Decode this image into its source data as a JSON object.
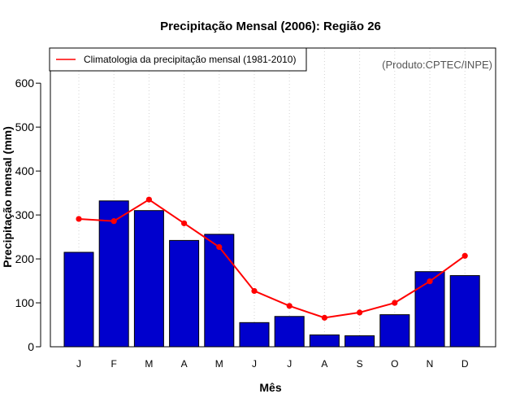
{
  "chart_data": {
    "type": "bar",
    "title": "Precipitação Mensal (2006): Região 26",
    "xlabel": "Mês",
    "ylabel": "Precipitação mensal (mm)",
    "categories": [
      "J",
      "F",
      "M",
      "A",
      "M",
      "J",
      "J",
      "A",
      "S",
      "O",
      "N",
      "D"
    ],
    "ylim": [
      0,
      680
    ],
    "yticks": [
      0,
      100,
      200,
      300,
      400,
      500,
      600
    ],
    "grid": "vertical-dotted",
    "series": [
      {
        "name": "Precipitação mensal (2006)",
        "type": "bar",
        "color": "#0000CD",
        "values": [
          215,
          332,
          310,
          242,
          256,
          55,
          69,
          27,
          25,
          73,
          171,
          162
        ]
      },
      {
        "name": "Climatologia da precipitação mensal (1981-2010)",
        "type": "line",
        "color": "#FF0000",
        "values": [
          291,
          286,
          335,
          281,
          227,
          127,
          93,
          66,
          78,
          100,
          149,
          207
        ]
      }
    ],
    "legend": {
      "position": "top-left",
      "label": "Climatologia da precipitação mensal (1981-2010)"
    },
    "credit": "(Produto:CPTEC/INPE)"
  }
}
